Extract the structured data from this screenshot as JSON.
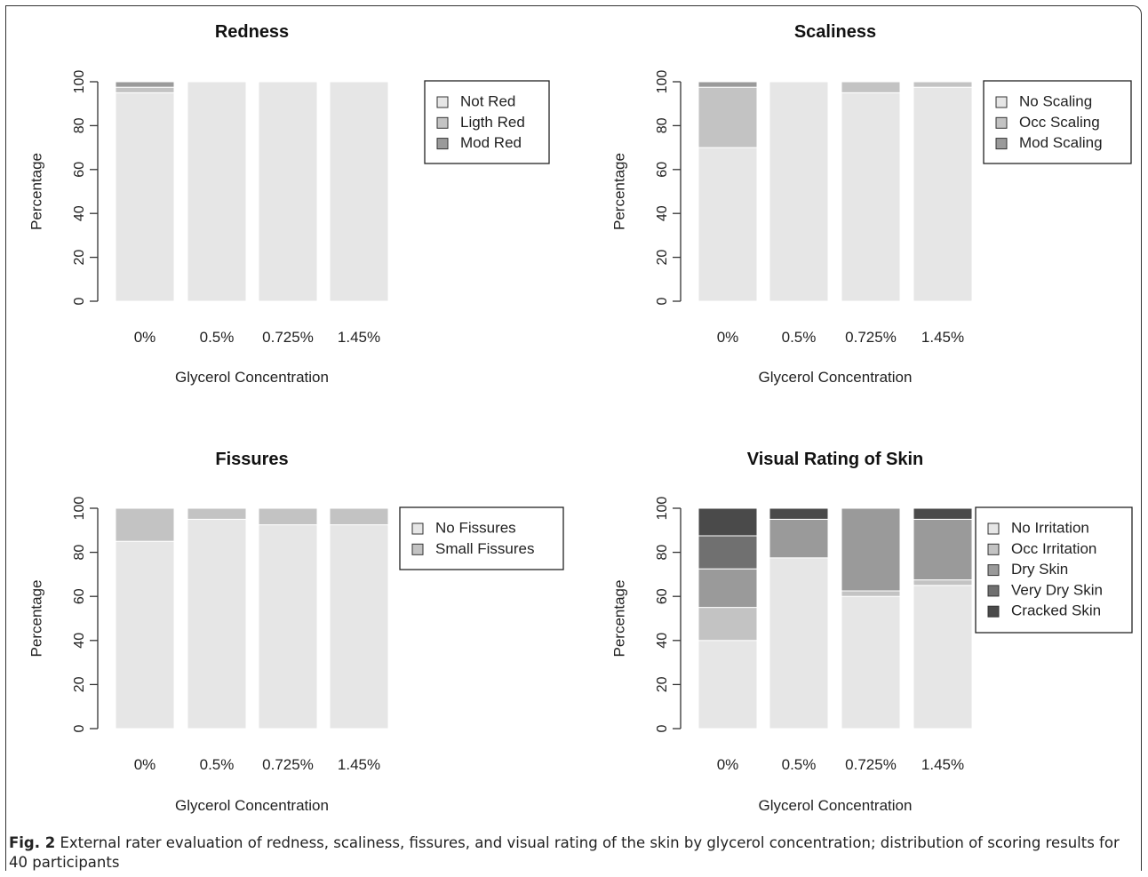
{
  "caption": {
    "label": "Fig. 2",
    "text": "External rater evaluation of redness, scaliness, fissures, and visual rating of the skin by glycerol concentration; distribution of scoring results for 40 participants"
  },
  "chart_data": [
    {
      "type": "bar",
      "stacked": true,
      "title": "Redness",
      "xlabel": "Glycerol Concentration",
      "ylabel": "Percentage",
      "ylim": [
        0,
        100
      ],
      "yticks": [
        "0",
        "20",
        "40",
        "60",
        "80",
        "100"
      ],
      "categories": [
        "0%",
        "0.5%",
        "0.725%",
        "1.45%"
      ],
      "legend_position": "top-right",
      "series": [
        {
          "name": "Not Red",
          "color": "#e6e6e6",
          "values": [
            95,
            100,
            100,
            100
          ]
        },
        {
          "name": "Ligth Red",
          "color": "#c3c3c3",
          "values": [
            2.5,
            0,
            0,
            0
          ]
        },
        {
          "name": "Mod Red",
          "color": "#9a9a9a",
          "values": [
            2.5,
            0,
            0,
            0
          ]
        }
      ]
    },
    {
      "type": "bar",
      "stacked": true,
      "title": "Scaliness",
      "xlabel": "Glycerol Concentration",
      "ylabel": "Percentage",
      "ylim": [
        0,
        100
      ],
      "yticks": [
        "0",
        "20",
        "40",
        "60",
        "80",
        "100"
      ],
      "categories": [
        "0%",
        "0.5%",
        "0.725%",
        "1.45%"
      ],
      "legend_position": "top-right",
      "series": [
        {
          "name": "No Scaling",
          "color": "#e6e6e6",
          "values": [
            70,
            100,
            95,
            97.5
          ]
        },
        {
          "name": "Occ Scaling",
          "color": "#c3c3c3",
          "values": [
            27.5,
            0,
            5,
            2.5
          ]
        },
        {
          "name": "Mod Scaling",
          "color": "#9a9a9a",
          "values": [
            2.5,
            0,
            0,
            0
          ]
        }
      ]
    },
    {
      "type": "bar",
      "stacked": true,
      "title": "Fissures",
      "xlabel": "Glycerol Concentration",
      "ylabel": "Percentage",
      "ylim": [
        0,
        100
      ],
      "yticks": [
        "0",
        "20",
        "40",
        "60",
        "80",
        "100"
      ],
      "categories": [
        "0%",
        "0.5%",
        "0.725%",
        "1.45%"
      ],
      "legend_position": "top-right",
      "series": [
        {
          "name": "No Fissures",
          "color": "#e6e6e6",
          "values": [
            85,
            95,
            92.5,
            92.5
          ]
        },
        {
          "name": "Small Fissures",
          "color": "#c3c3c3",
          "values": [
            15,
            5,
            7.5,
            7.5
          ]
        }
      ]
    },
    {
      "type": "bar",
      "stacked": true,
      "title": "Visual Rating of Skin",
      "xlabel": "Glycerol Concentration",
      "ylabel": "Percentage",
      "ylim": [
        0,
        100
      ],
      "yticks": [
        "0",
        "20",
        "40",
        "60",
        "80",
        "100"
      ],
      "categories": [
        "0%",
        "0.5%",
        "0.725%",
        "1.45%"
      ],
      "legend_position": "top-right",
      "series": [
        {
          "name": "No Irritation",
          "color": "#e6e6e6",
          "values": [
            40,
            77.5,
            60,
            65
          ]
        },
        {
          "name": "Occ Irritation",
          "color": "#c3c3c3",
          "values": [
            15,
            0,
            2.5,
            2.5
          ]
        },
        {
          "name": "Dry Skin",
          "color": "#9a9a9a",
          "values": [
            17.5,
            17.5,
            37.5,
            27.5
          ]
        },
        {
          "name": "Very Dry Skin",
          "color": "#707070",
          "values": [
            15,
            0,
            0,
            0
          ]
        },
        {
          "name": "Cracked Skin",
          "color": "#4a4a4a",
          "values": [
            12.5,
            5,
            0,
            5
          ]
        }
      ]
    }
  ]
}
